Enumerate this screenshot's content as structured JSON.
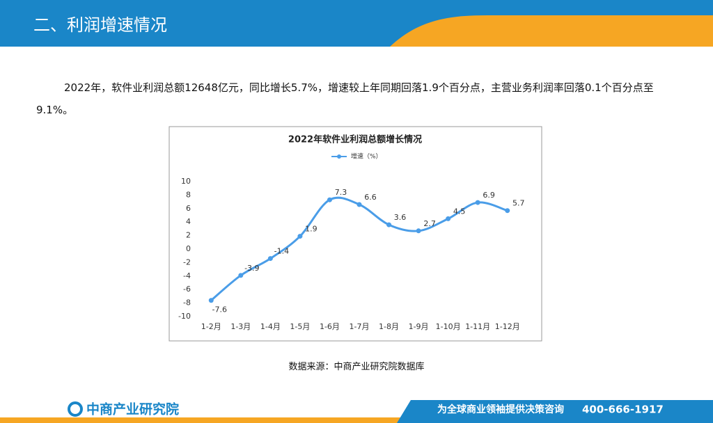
{
  "header": {
    "title": "二、利润增速情况"
  },
  "paragraph": "2022年，软件业利润总额12648亿元，同比增长5.7%，增速较上年同期回落1.9个百分点，主营业务利润率回落0.1个百分点至9.1%。",
  "chart_data": {
    "type": "line",
    "title": "2022年软件业利润总额增长情况",
    "categories": [
      "1-2月",
      "1-3月",
      "1-4月",
      "1-5月",
      "1-6月",
      "1-7月",
      "1-8月",
      "1-9月",
      "1-10月",
      "1-11月",
      "1-12月"
    ],
    "series": [
      {
        "name": "增速（%）",
        "color": "#4a9de8",
        "values": [
          -7.6,
          -3.9,
          -1.4,
          1.9,
          7.3,
          6.6,
          3.6,
          2.7,
          4.5,
          6.9,
          5.7
        ]
      }
    ],
    "ylim": [
      -10,
      10
    ],
    "yticks": [
      -10,
      -8,
      -6,
      -4,
      -2,
      0,
      2,
      4,
      6,
      8,
      10
    ],
    "legend": "top"
  },
  "source": "数据来源：中商产业研究院数据库",
  "footer": {
    "logo": "中商产业研究院",
    "slogan": "为全球商业领袖提供决策咨询",
    "phone": "400-666-1917"
  }
}
